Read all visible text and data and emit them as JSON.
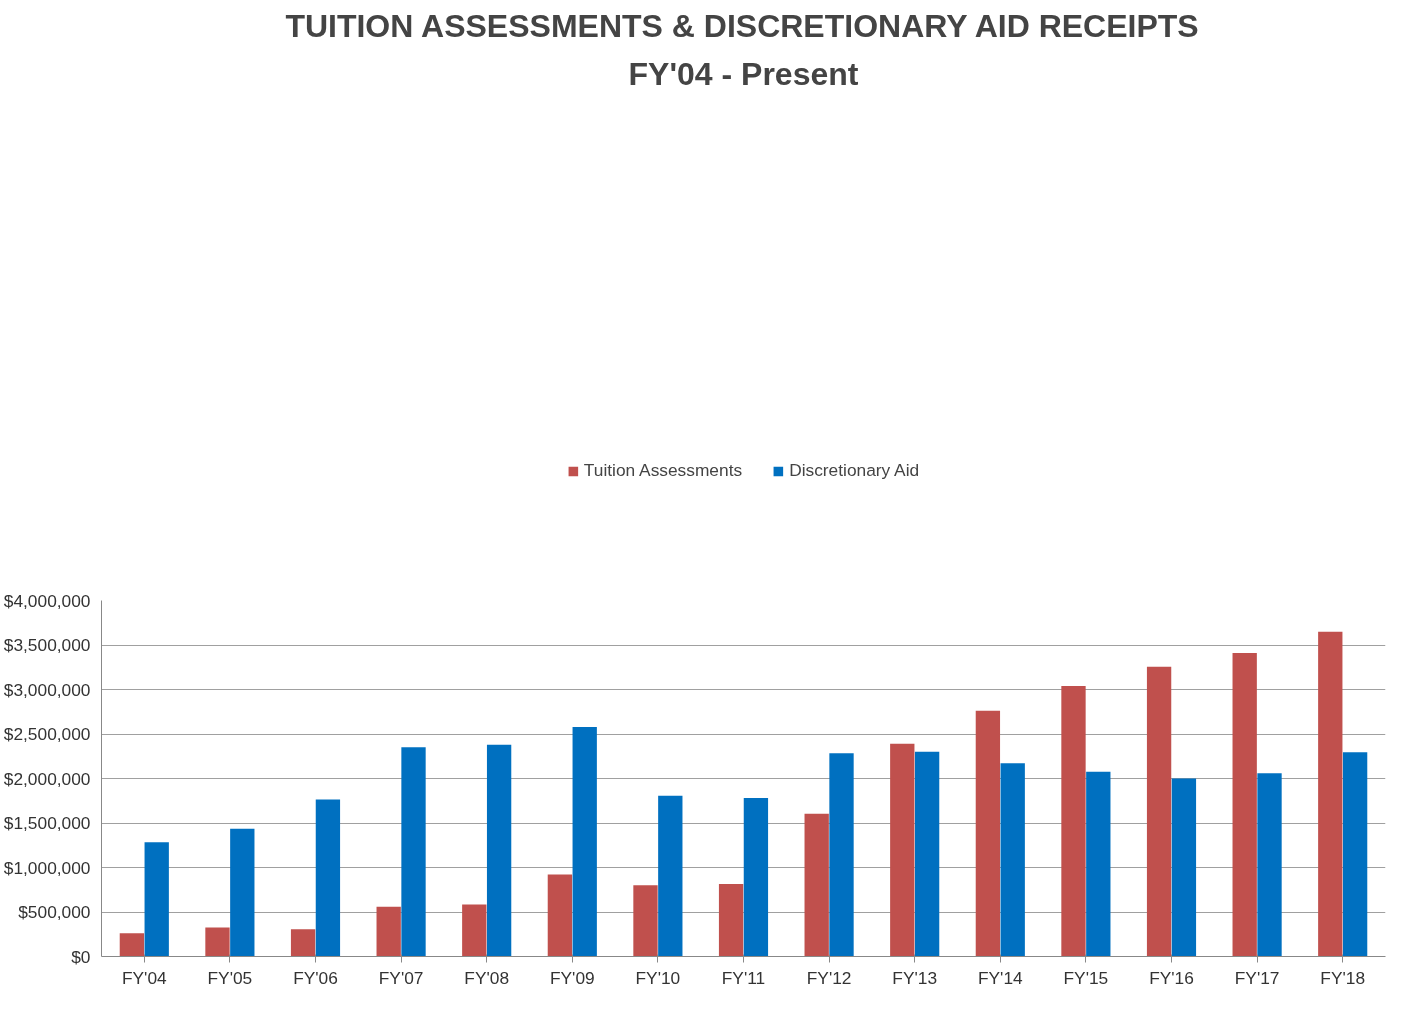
{
  "chart_data": {
    "type": "bar",
    "title": "TUITION ASSESSMENTS & DISCRETIONARY AID RECEIPTS",
    "subtitle": "FY'04 - Present",
    "categories": [
      "FY'04",
      "FY'05",
      "FY'06",
      "FY'07",
      "FY'08",
      "FY'09",
      "FY'10",
      "FY'11",
      "FY'12",
      "FY'13",
      "FY'14",
      "FY'15",
      "FY'16",
      "FY'17",
      "FY'18"
    ],
    "series": [
      {
        "name": "Tuition Assessments",
        "color": "#c0504d",
        "values": [
          260000,
          325000,
          305000,
          560000,
          585000,
          920000,
          800000,
          815000,
          1605000,
          2390000,
          2760000,
          3040000,
          3255000,
          3410000,
          3650000
        ]
      },
      {
        "name": "Discretionary Aid",
        "color": "#0070c0",
        "values": [
          1285000,
          1435000,
          1765000,
          2350000,
          2380000,
          2580000,
          1805000,
          1780000,
          2285000,
          2300000,
          2170000,
          2075000,
          2000000,
          2060000,
          2295000
        ]
      }
    ],
    "ylim": [
      0,
      4000000
    ],
    "yticks": [
      {
        "value": 0,
        "label": "$0"
      },
      {
        "value": 500000,
        "label": "$500,000"
      },
      {
        "value": 1000000,
        "label": "$1,000,000"
      },
      {
        "value": 1500000,
        "label": "$1,500,000"
      },
      {
        "value": 2000000,
        "label": "$2,000,000"
      },
      {
        "value": 2500000,
        "label": "$2,500,000"
      },
      {
        "value": 3000000,
        "label": "$3,000,000"
      },
      {
        "value": 3500000,
        "label": "$3,500,000"
      },
      {
        "value": 4000000,
        "label": "$4,000,000"
      }
    ],
    "grid": "y",
    "legend": "top"
  }
}
